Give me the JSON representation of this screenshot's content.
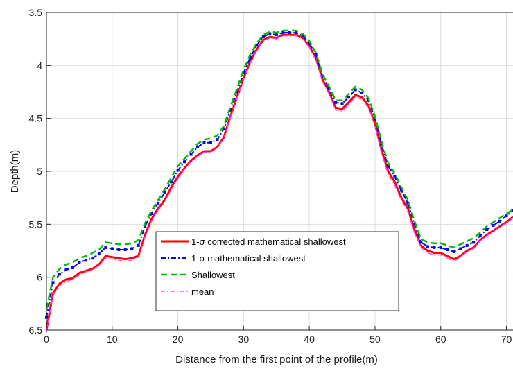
{
  "chart_data": {
    "type": "line",
    "xlabel": "Distance from the first point of the profile(m)",
    "ylabel": "Depth(m)",
    "xlim": [
      0,
      71
    ],
    "ylim": [
      3.5,
      6.5
    ],
    "y_reversed": true,
    "x_ticks": [
      0,
      10,
      20,
      30,
      40,
      50,
      60,
      70
    ],
    "y_ticks": [
      3.5,
      4,
      4.5,
      5,
      5.5,
      6,
      6.5
    ],
    "grid": true,
    "legend_position": "lower-center",
    "series": [
      {
        "name": "1-σ corrected mathematical shallowest",
        "color": "#ff0000",
        "style": "solid",
        "points": [
          [
            0,
            6.5
          ],
          [
            1,
            6.15
          ],
          [
            2,
            6.06
          ],
          [
            3,
            6.02
          ],
          [
            4,
            6.01
          ],
          [
            5,
            5.96
          ],
          [
            6,
            5.94
          ],
          [
            7,
            5.92
          ],
          [
            8,
            5.88
          ],
          [
            9,
            5.8
          ],
          [
            10,
            5.81
          ],
          [
            11,
            5.82
          ],
          [
            12,
            5.83
          ],
          [
            13,
            5.82
          ],
          [
            14,
            5.8
          ],
          [
            15,
            5.6
          ],
          [
            16,
            5.45
          ],
          [
            17,
            5.35
          ],
          [
            18,
            5.27
          ],
          [
            19,
            5.15
          ],
          [
            20,
            5.05
          ],
          [
            21,
            4.97
          ],
          [
            22,
            4.9
          ],
          [
            23,
            4.85
          ],
          [
            24,
            4.81
          ],
          [
            25,
            4.81
          ],
          [
            26,
            4.77
          ],
          [
            27,
            4.68
          ],
          [
            28,
            4.48
          ],
          [
            29,
            4.3
          ],
          [
            30,
            4.12
          ],
          [
            31,
            3.97
          ],
          [
            32,
            3.85
          ],
          [
            33,
            3.76
          ],
          [
            34,
            3.73
          ],
          [
            35,
            3.74
          ],
          [
            36,
            3.71
          ],
          [
            37,
            3.71
          ],
          [
            38,
            3.71
          ],
          [
            39,
            3.74
          ],
          [
            40,
            3.82
          ],
          [
            41,
            3.93
          ],
          [
            42,
            4.13
          ],
          [
            43,
            4.25
          ],
          [
            44,
            4.4
          ],
          [
            45,
            4.41
          ],
          [
            46,
            4.35
          ],
          [
            47,
            4.28
          ],
          [
            48,
            4.3
          ],
          [
            49,
            4.38
          ],
          [
            50,
            4.55
          ],
          [
            51,
            4.8
          ],
          [
            52,
            5.0
          ],
          [
            53,
            5.1
          ],
          [
            54,
            5.25
          ],
          [
            55,
            5.35
          ],
          [
            56,
            5.55
          ],
          [
            57,
            5.7
          ],
          [
            58,
            5.75
          ],
          [
            59,
            5.77
          ],
          [
            60,
            5.77
          ],
          [
            61,
            5.8
          ],
          [
            62,
            5.83
          ],
          [
            63,
            5.8
          ],
          [
            64,
            5.75
          ],
          [
            65,
            5.72
          ],
          [
            66,
            5.65
          ],
          [
            67,
            5.6
          ],
          [
            68,
            5.56
          ],
          [
            69,
            5.52
          ],
          [
            70,
            5.48
          ],
          [
            71,
            5.43
          ]
        ]
      },
      {
        "name": "1-σ mathematical shallowest",
        "color": "#0000ff",
        "style": "dashdot-marker",
        "points": [
          [
            0,
            6.38
          ],
          [
            1,
            6.05
          ],
          [
            2,
            5.97
          ],
          [
            3,
            5.93
          ],
          [
            4,
            5.91
          ],
          [
            5,
            5.86
          ],
          [
            6,
            5.84
          ],
          [
            7,
            5.82
          ],
          [
            8,
            5.78
          ],
          [
            9,
            5.72
          ],
          [
            10,
            5.73
          ],
          [
            11,
            5.74
          ],
          [
            12,
            5.74
          ],
          [
            13,
            5.73
          ],
          [
            14,
            5.7
          ],
          [
            15,
            5.52
          ],
          [
            16,
            5.4
          ],
          [
            17,
            5.3
          ],
          [
            18,
            5.2
          ],
          [
            19,
            5.1
          ],
          [
            20,
            4.99
          ],
          [
            21,
            4.91
          ],
          [
            22,
            4.84
          ],
          [
            23,
            4.77
          ],
          [
            24,
            4.73
          ],
          [
            25,
            4.73
          ],
          [
            26,
            4.7
          ],
          [
            27,
            4.6
          ],
          [
            28,
            4.42
          ],
          [
            29,
            4.25
          ],
          [
            30,
            4.07
          ],
          [
            31,
            3.93
          ],
          [
            32,
            3.81
          ],
          [
            33,
            3.73
          ],
          [
            34,
            3.7
          ],
          [
            35,
            3.71
          ],
          [
            36,
            3.69
          ],
          [
            37,
            3.69
          ],
          [
            38,
            3.69
          ],
          [
            39,
            3.72
          ],
          [
            40,
            3.79
          ],
          [
            41,
            3.9
          ],
          [
            42,
            4.1
          ],
          [
            43,
            4.22
          ],
          [
            44,
            4.35
          ],
          [
            45,
            4.36
          ],
          [
            46,
            4.3
          ],
          [
            47,
            4.23
          ],
          [
            48,
            4.26
          ],
          [
            49,
            4.33
          ],
          [
            50,
            4.5
          ],
          [
            51,
            4.75
          ],
          [
            52,
            4.95
          ],
          [
            53,
            5.05
          ],
          [
            54,
            5.18
          ],
          [
            55,
            5.3
          ],
          [
            56,
            5.5
          ],
          [
            57,
            5.67
          ],
          [
            58,
            5.71
          ],
          [
            59,
            5.72
          ],
          [
            60,
            5.72
          ],
          [
            61,
            5.74
          ],
          [
            62,
            5.76
          ],
          [
            63,
            5.73
          ],
          [
            64,
            5.7
          ],
          [
            65,
            5.67
          ],
          [
            66,
            5.61
          ],
          [
            67,
            5.55
          ],
          [
            68,
            5.51
          ],
          [
            69,
            5.47
          ],
          [
            70,
            5.42
          ],
          [
            71,
            5.37
          ]
        ]
      },
      {
        "name": "Shallowest",
        "color": "#00bb00",
        "style": "dashed",
        "points": [
          [
            0,
            6.3
          ],
          [
            1,
            6.0
          ],
          [
            2,
            5.92
          ],
          [
            3,
            5.88
          ],
          [
            4,
            5.86
          ],
          [
            5,
            5.82
          ],
          [
            6,
            5.8
          ],
          [
            7,
            5.77
          ],
          [
            8,
            5.74
          ],
          [
            9,
            5.67
          ],
          [
            10,
            5.68
          ],
          [
            11,
            5.69
          ],
          [
            12,
            5.69
          ],
          [
            13,
            5.68
          ],
          [
            14,
            5.65
          ],
          [
            15,
            5.49
          ],
          [
            16,
            5.37
          ],
          [
            17,
            5.27
          ],
          [
            18,
            5.17
          ],
          [
            19,
            5.06
          ],
          [
            20,
            4.95
          ],
          [
            21,
            4.88
          ],
          [
            22,
            4.81
          ],
          [
            23,
            4.74
          ],
          [
            24,
            4.7
          ],
          [
            25,
            4.69
          ],
          [
            26,
            4.66
          ],
          [
            27,
            4.57
          ],
          [
            28,
            4.39
          ],
          [
            29,
            4.22
          ],
          [
            30,
            4.04
          ],
          [
            31,
            3.9
          ],
          [
            32,
            3.79
          ],
          [
            33,
            3.71
          ],
          [
            34,
            3.68
          ],
          [
            35,
            3.69
          ],
          [
            36,
            3.67
          ],
          [
            37,
            3.67
          ],
          [
            38,
            3.67
          ],
          [
            39,
            3.7
          ],
          [
            40,
            3.77
          ],
          [
            41,
            3.88
          ],
          [
            42,
            4.08
          ],
          [
            43,
            4.2
          ],
          [
            44,
            4.33
          ],
          [
            45,
            4.33
          ],
          [
            46,
            4.27
          ],
          [
            47,
            4.2
          ],
          [
            48,
            4.23
          ],
          [
            49,
            4.31
          ],
          [
            50,
            4.48
          ],
          [
            51,
            4.72
          ],
          [
            52,
            4.92
          ],
          [
            53,
            5.02
          ],
          [
            54,
            5.15
          ],
          [
            55,
            5.27
          ],
          [
            56,
            5.47
          ],
          [
            57,
            5.64
          ],
          [
            58,
            5.67
          ],
          [
            59,
            5.68
          ],
          [
            60,
            5.68
          ],
          [
            61,
            5.7
          ],
          [
            62,
            5.72
          ],
          [
            63,
            5.69
          ],
          [
            64,
            5.66
          ],
          [
            65,
            5.63
          ],
          [
            66,
            5.58
          ],
          [
            67,
            5.52
          ],
          [
            68,
            5.48
          ],
          [
            69,
            5.44
          ],
          [
            70,
            5.4
          ],
          [
            71,
            5.36
          ]
        ]
      },
      {
        "name": "mean",
        "color": "#ff44ff",
        "style": "dashdot",
        "points": [
          [
            0,
            6.52
          ],
          [
            1,
            6.17
          ],
          [
            2,
            6.08
          ],
          [
            3,
            6.04
          ],
          [
            4,
            6.02
          ],
          [
            5,
            5.98
          ],
          [
            6,
            5.95
          ],
          [
            7,
            5.93
          ],
          [
            8,
            5.89
          ],
          [
            9,
            5.82
          ],
          [
            10,
            5.83
          ],
          [
            11,
            5.84
          ],
          [
            12,
            5.85
          ],
          [
            13,
            5.84
          ],
          [
            14,
            5.81
          ],
          [
            15,
            5.62
          ],
          [
            16,
            5.47
          ],
          [
            17,
            5.37
          ],
          [
            18,
            5.29
          ],
          [
            19,
            5.17
          ],
          [
            20,
            5.07
          ],
          [
            21,
            4.98
          ],
          [
            22,
            4.91
          ],
          [
            23,
            4.86
          ],
          [
            24,
            4.82
          ],
          [
            25,
            4.82
          ],
          [
            26,
            4.78
          ],
          [
            27,
            4.69
          ],
          [
            28,
            4.49
          ],
          [
            29,
            4.31
          ],
          [
            30,
            4.13
          ],
          [
            31,
            3.98
          ],
          [
            32,
            3.86
          ],
          [
            33,
            3.77
          ],
          [
            34,
            3.74
          ],
          [
            35,
            3.75
          ],
          [
            36,
            3.72
          ],
          [
            37,
            3.72
          ],
          [
            38,
            3.72
          ],
          [
            39,
            3.75
          ],
          [
            40,
            3.83
          ],
          [
            41,
            3.95
          ],
          [
            42,
            4.15
          ],
          [
            43,
            4.27
          ],
          [
            44,
            4.42
          ],
          [
            45,
            4.43
          ],
          [
            46,
            4.37
          ],
          [
            47,
            4.3
          ],
          [
            48,
            4.32
          ],
          [
            49,
            4.4
          ],
          [
            50,
            4.57
          ],
          [
            51,
            4.83
          ],
          [
            52,
            5.03
          ],
          [
            53,
            5.13
          ],
          [
            54,
            5.28
          ],
          [
            55,
            5.38
          ],
          [
            56,
            5.58
          ],
          [
            57,
            5.72
          ],
          [
            58,
            5.77
          ],
          [
            59,
            5.79
          ],
          [
            60,
            5.79
          ],
          [
            61,
            5.82
          ],
          [
            62,
            5.85
          ],
          [
            63,
            5.81
          ],
          [
            64,
            5.76
          ],
          [
            65,
            5.73
          ],
          [
            66,
            5.66
          ],
          [
            67,
            5.61
          ],
          [
            68,
            5.57
          ],
          [
            69,
            5.53
          ],
          [
            70,
            5.49
          ],
          [
            71,
            5.44
          ]
        ]
      }
    ]
  }
}
